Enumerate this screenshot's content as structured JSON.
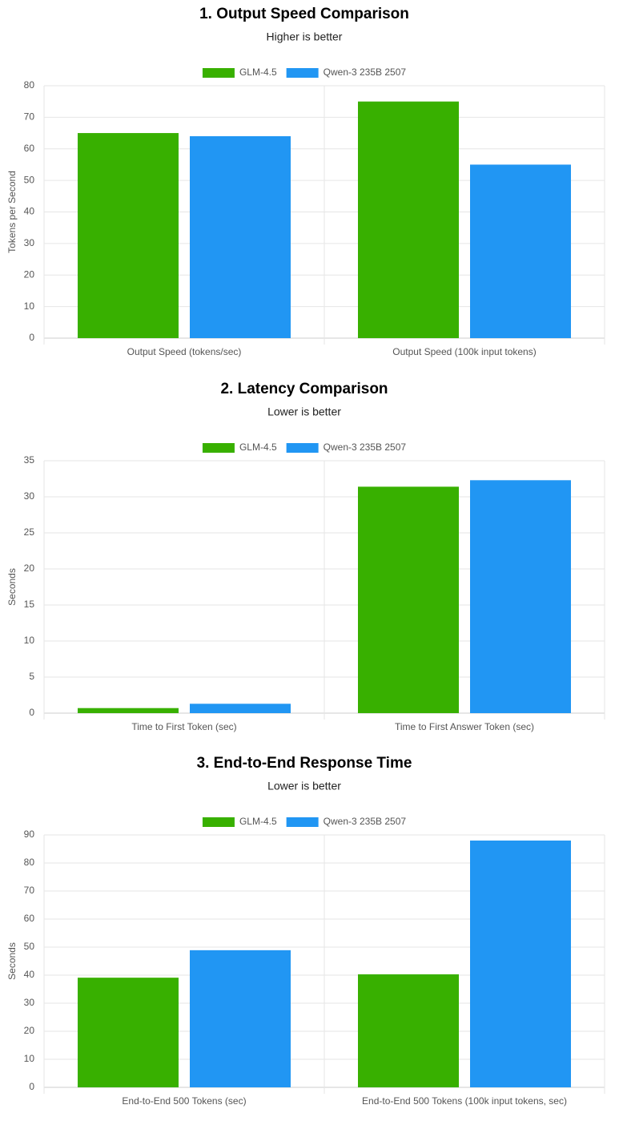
{
  "chart_data": [
    {
      "type": "bar",
      "title": "1. Output Speed Comparison",
      "subtitle": "Higher is better",
      "y_label": "Tokens per Second",
      "categories": [
        "Output Speed (tokens/sec)",
        "Output Speed (100k input tokens)"
      ],
      "series": [
        {
          "name": "GLM-4.5",
          "color": "#38b000",
          "values": [
            65,
            75
          ]
        },
        {
          "name": "Qwen-3 235B 2507",
          "color": "#2196f3",
          "values": [
            64,
            55
          ]
        }
      ],
      "ylim": [
        0,
        80
      ],
      "yticks": [
        0,
        10,
        20,
        30,
        40,
        50,
        60,
        70,
        80
      ],
      "grid": true,
      "legend": "top"
    },
    {
      "type": "bar",
      "title": "2. Latency Comparison",
      "subtitle": "Lower is better",
      "y_label": "Seconds",
      "categories": [
        "Time to First Token (sec)",
        "Time to First Answer Token (sec)"
      ],
      "series": [
        {
          "name": "GLM-4.5",
          "color": "#38b000",
          "values": [
            0.7,
            31.4
          ]
        },
        {
          "name": "Qwen-3 235B 2507",
          "color": "#2196f3",
          "values": [
            1.3,
            32.3
          ]
        }
      ],
      "ylim": [
        0,
        35
      ],
      "yticks": [
        0,
        5,
        10,
        15,
        20,
        25,
        30,
        35
      ],
      "grid": true,
      "legend": "top"
    },
    {
      "type": "bar",
      "title": "3. End-to-End Response Time",
      "subtitle": "Lower is better",
      "y_label": "Seconds",
      "categories": [
        "End-to-End 500 Tokens (sec)",
        "End-to-End 500 Tokens (100k input tokens, sec)"
      ],
      "series": [
        {
          "name": "GLM-4.5",
          "color": "#38b000",
          "values": [
            39.1,
            40.3
          ]
        },
        {
          "name": "Qwen-3 235B 2507",
          "color": "#2196f3",
          "values": [
            48.9,
            88
          ]
        }
      ],
      "ylim": [
        0,
        90
      ],
      "yticks": [
        0,
        10,
        20,
        30,
        40,
        50,
        60,
        70,
        80,
        90
      ],
      "grid": true,
      "legend": "top"
    }
  ]
}
